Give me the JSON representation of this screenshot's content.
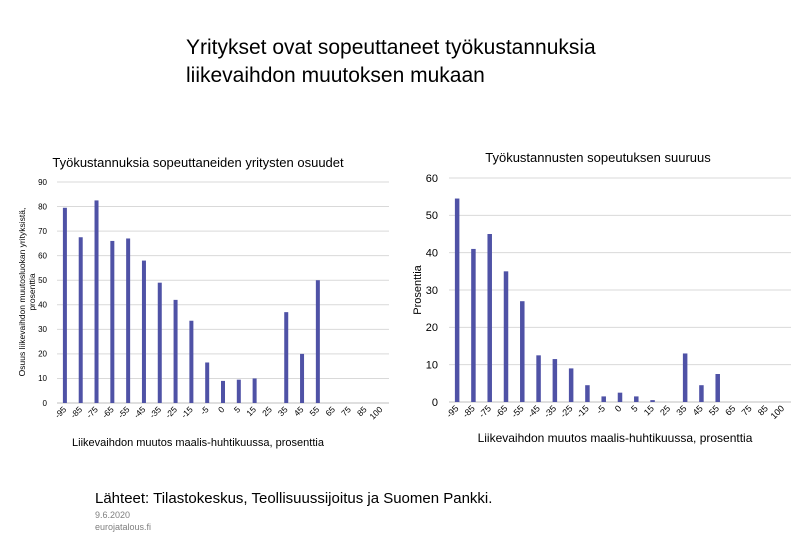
{
  "page": {
    "title_line1": "Yritykset ovat sopeuttaneet työkustannuksia",
    "title_line2": "liikevaihdon muutoksen mukaan",
    "sources": "Lähteet: Tilastokeskus, Teollisuussijoitus  ja Suomen Pankki.",
    "date": "9.6.2020",
    "site": "eurojatalous.fi"
  },
  "colors": {
    "bar": "#4f52a6",
    "grid": "#d9d9d9",
    "axis": "#bfbfbf"
  },
  "chart_data": [
    {
      "type": "bar",
      "title": "Työkustannuksia  sopeuttaneiden  yritysten osuudet",
      "xlabel": "Liikevaihdon  muutos maalis-huhtikuussa,  prosenttia",
      "ylabel_line1": "Osuus liikevaihdon muutosluokan yrityksistä,",
      "ylabel_line2": "prosenttia",
      "categories": [
        "-95",
        "-85",
        "-75",
        "-65",
        "-55",
        "-45",
        "-35",
        "-25",
        "-15",
        "-5",
        "0",
        "5",
        "15",
        "25",
        "35",
        "45",
        "55",
        "65",
        "75",
        "85",
        "100"
      ],
      "values": [
        79.5,
        67.5,
        82.5,
        66,
        67,
        58,
        49,
        42,
        33.5,
        16.5,
        9,
        9.5,
        10,
        0,
        37,
        20,
        50,
        0,
        0,
        0,
        0
      ],
      "ylim": [
        0,
        90
      ],
      "yticks": [
        0,
        10,
        20,
        30,
        40,
        50,
        60,
        70,
        80,
        90
      ],
      "grid": true
    },
    {
      "type": "bar",
      "title": "Työkustannusten  sopeutuksen  suuruus",
      "xlabel": "Liikevaihdon  muutos maalis-huhtikuussa,  prosenttia",
      "ylabel": "Prosenttia",
      "categories": [
        "-95",
        "-85",
        "-75",
        "-65",
        "-55",
        "-45",
        "-35",
        "-25",
        "-15",
        "-5",
        "0",
        "5",
        "15",
        "25",
        "35",
        "45",
        "55",
        "65",
        "75",
        "85",
        "100"
      ],
      "values": [
        54.5,
        41,
        45,
        35,
        27,
        12.5,
        11.5,
        9,
        4.5,
        1.5,
        2.5,
        1.5,
        0.5,
        0,
        13,
        4.5,
        7.5,
        0,
        0,
        0,
        0
      ],
      "ylim": [
        0,
        60
      ],
      "yticks": [
        0,
        10,
        20,
        30,
        40,
        50,
        60
      ],
      "grid": true
    }
  ]
}
